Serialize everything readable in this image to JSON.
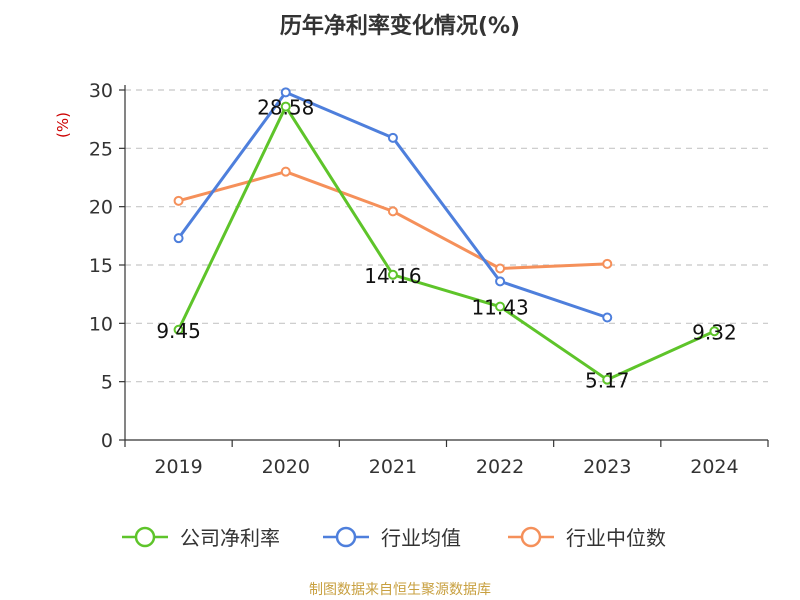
{
  "chart_data": {
    "type": "line",
    "title": "历年净利率变化情况(%)",
    "ylabel": "(%)",
    "xlabel": "",
    "categories": [
      "2019",
      "2020",
      "2021",
      "2022",
      "2023",
      "2024"
    ],
    "ylim": [
      0,
      30
    ],
    "yticks": [
      0,
      5,
      10,
      15,
      20,
      25,
      30
    ],
    "grid": true,
    "legend_position": "bottom",
    "series": [
      {
        "name": "公司净利率",
        "color": "#5ec42a",
        "values": [
          9.45,
          28.58,
          14.16,
          11.43,
          5.17,
          9.32
        ],
        "labels": [
          "9.45",
          "28.58",
          "14.16",
          "11.43",
          "5.17",
          "9.32"
        ]
      },
      {
        "name": "行业均值",
        "color": "#4e7fdc",
        "values": [
          17.3,
          29.8,
          25.9,
          13.6,
          10.5,
          null
        ]
      },
      {
        "name": "行业中位数",
        "color": "#f5905a",
        "values": [
          20.5,
          23.0,
          19.6,
          14.7,
          15.1,
          null
        ]
      }
    ],
    "source": "制图数据来自恒生聚源数据库"
  }
}
